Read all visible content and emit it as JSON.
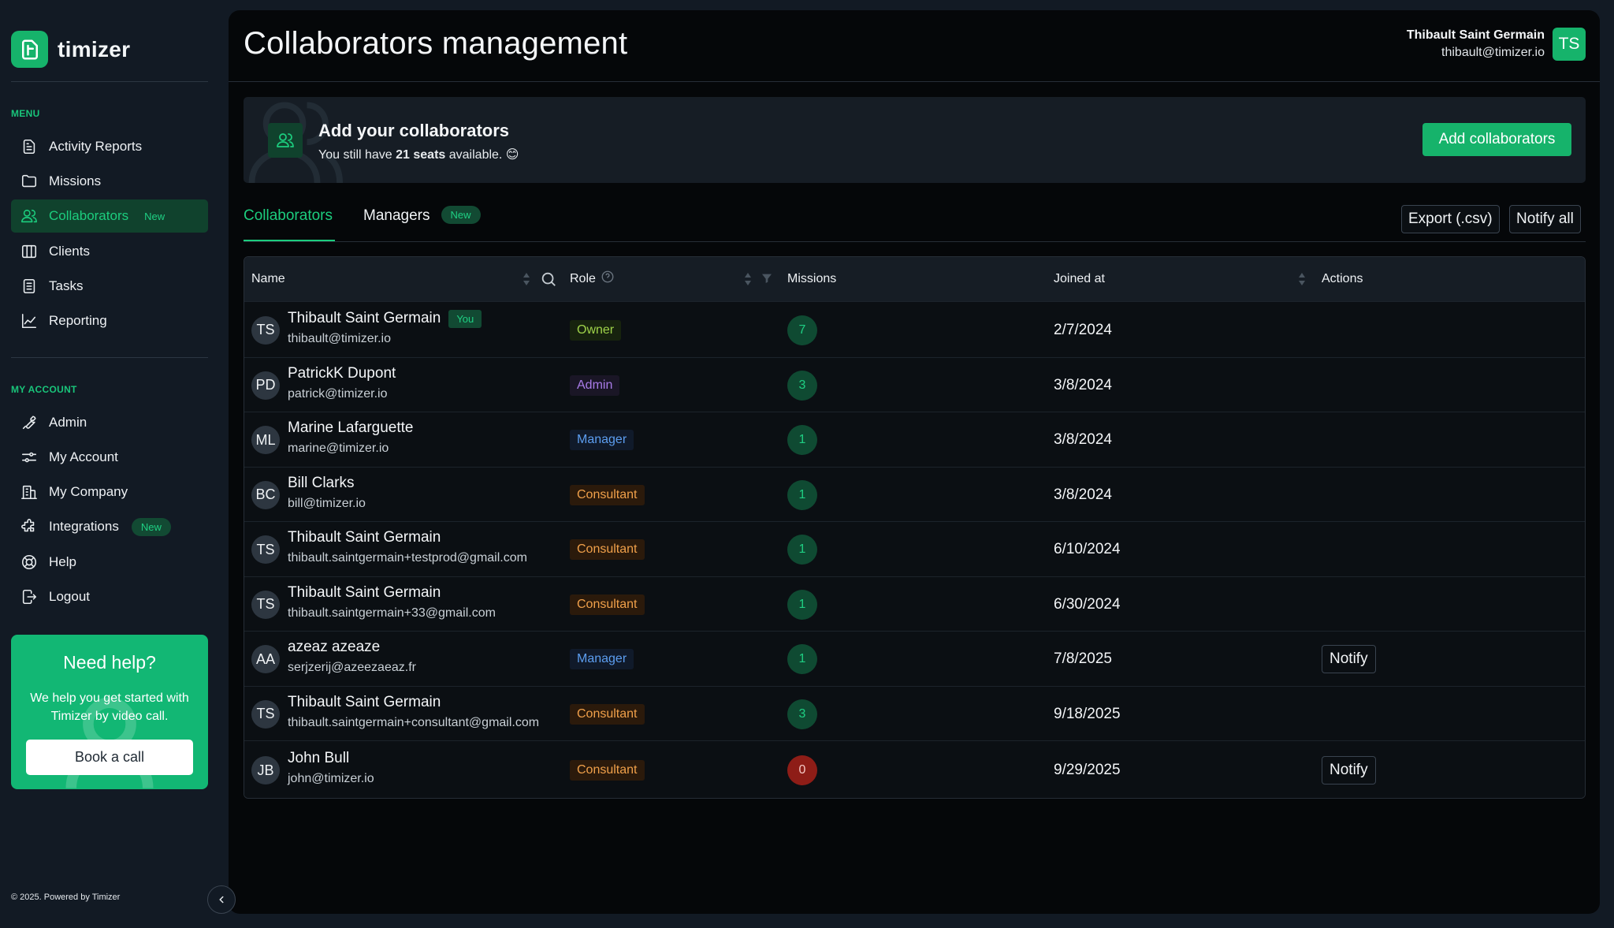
{
  "app": {
    "name": "timizer"
  },
  "sidebar": {
    "menu_title": "MENU",
    "menu_items": [
      {
        "label": "Activity Reports",
        "icon": "document-icon"
      },
      {
        "label": "Missions",
        "icon": "folder-icon"
      },
      {
        "label": "Collaborators",
        "icon": "users-icon",
        "badge": "New",
        "active": true
      },
      {
        "label": "Clients",
        "icon": "columns-icon"
      },
      {
        "label": "Tasks",
        "icon": "list-icon"
      },
      {
        "label": "Reporting",
        "icon": "chart-icon"
      }
    ],
    "account_title": "MY ACCOUNT",
    "account_items": [
      {
        "label": "Admin",
        "icon": "wrench-icon"
      },
      {
        "label": "My Account",
        "icon": "sliders-icon"
      },
      {
        "label": "My Company",
        "icon": "building-icon"
      },
      {
        "label": "Integrations",
        "icon": "puzzle-icon",
        "badge": "New"
      },
      {
        "label": "Help",
        "icon": "lifebuoy-icon"
      },
      {
        "label": "Logout",
        "icon": "logout-icon"
      }
    ],
    "help_card": {
      "title": "Need help?",
      "text": "We help you get started with Timizer by video call.",
      "button": "Book a call"
    },
    "footer": "© 2025. Powered by Timizer"
  },
  "header": {
    "title": "Collaborators management",
    "user_name": "Thibault Saint Germain",
    "user_email": "thibault@timizer.io",
    "user_initials": "TS"
  },
  "banner": {
    "title": "Add your collaborators",
    "sub_prefix": "You still have ",
    "seats": "21 seats",
    "sub_suffix": " available. 😊",
    "button": "Add collaborators"
  },
  "tabs": [
    {
      "label": "Collaborators",
      "active": true
    },
    {
      "label": "Managers",
      "badge": "New"
    }
  ],
  "toolbar": {
    "export_label": "Export (.csv)",
    "notify_all_label": "Notify all"
  },
  "table": {
    "columns": {
      "name": "Name",
      "role": "Role",
      "missions": "Missions",
      "joined": "Joined at",
      "actions": "Actions"
    },
    "you_badge": "You",
    "rows": [
      {
        "initials": "TS",
        "name": "Thibault Saint Germain",
        "email": "thibault@timizer.io",
        "you": true,
        "role": "Owner",
        "role_type": "owner",
        "missions": "7",
        "joined": "2/7/2024",
        "action": ""
      },
      {
        "initials": "PD",
        "name": "PatrickK Dupont",
        "email": "patrick@timizer.io",
        "role": "Admin",
        "role_type": "admin",
        "missions": "3",
        "joined": "3/8/2024",
        "action": ""
      },
      {
        "initials": "ML",
        "name": "Marine Lafarguette",
        "email": "marine@timizer.io",
        "role": "Manager",
        "role_type": "manager",
        "missions": "1",
        "joined": "3/8/2024",
        "action": ""
      },
      {
        "initials": "BC",
        "name": "Bill Clarks",
        "email": "bill@timizer.io",
        "role": "Consultant",
        "role_type": "consultant",
        "missions": "1",
        "joined": "3/8/2024",
        "action": ""
      },
      {
        "initials": "TS",
        "name": "Thibault Saint Germain",
        "email": "thibault.saintgermain+testprod@gmail.com",
        "role": "Consultant",
        "role_type": "consultant",
        "missions": "1",
        "joined": "6/10/2024",
        "action": ""
      },
      {
        "initials": "TS",
        "name": "Thibault Saint Germain",
        "email": "thibault.saintgermain+33@gmail.com",
        "role": "Consultant",
        "role_type": "consultant",
        "missions": "1",
        "joined": "6/30/2024",
        "action": ""
      },
      {
        "initials": "AA",
        "name": "azeaz azeaze",
        "email": "serjzerij@azeezaeaz.fr",
        "role": "Manager",
        "role_type": "manager",
        "missions": "1",
        "joined": "7/8/2025",
        "action": "Notify"
      },
      {
        "initials": "TS",
        "name": "Thibault Saint Germain",
        "email": "thibault.saintgermain+consultant@gmail.com",
        "role": "Consultant",
        "role_type": "consultant",
        "missions": "3",
        "joined": "9/18/2025",
        "action": ""
      },
      {
        "initials": "JB",
        "name": "John Bull",
        "email": "john@timizer.io",
        "role": "Consultant",
        "role_type": "consultant",
        "missions": "0",
        "joined": "9/29/2025",
        "action": "Notify"
      }
    ]
  }
}
